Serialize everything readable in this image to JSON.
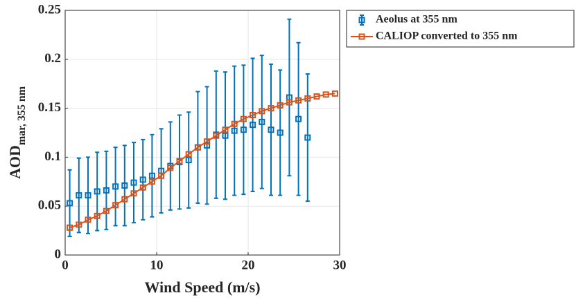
{
  "chart_data": {
    "type": "errorbar",
    "xlabel": "Wind Speed (m/s)",
    "ylabel": "AOD",
    "ylabel_sub": "mar, 355 nm",
    "xlim": [
      0,
      30
    ],
    "xticks": [
      0,
      10,
      20,
      30
    ],
    "ylim": [
      0,
      0.25
    ],
    "yticks": [
      0,
      0.05,
      0.1,
      0.15,
      0.2,
      0.25
    ],
    "grid": true,
    "legend_position": "outside-right",
    "series": [
      {
        "name": "Aeolus at 355 nm",
        "color": "#0072bd",
        "connected": false,
        "x": [
          0.5,
          1.5,
          2.5,
          3.5,
          4.5,
          5.5,
          6.5,
          7.5,
          8.5,
          9.5,
          10.5,
          11.5,
          12.5,
          13.5,
          14.5,
          15.5,
          16.5,
          17.5,
          18.5,
          19.5,
          20.5,
          21.5,
          22.5,
          23.5,
          24.5,
          25.5,
          26.5
        ],
        "values": [
          0.053,
          0.061,
          0.061,
          0.065,
          0.066,
          0.07,
          0.071,
          0.074,
          0.077,
          0.081,
          0.086,
          0.091,
          0.095,
          0.097,
          0.11,
          0.112,
          0.123,
          0.122,
          0.127,
          0.128,
          0.133,
          0.136,
          0.128,
          0.125,
          0.161,
          0.139,
          0.12
        ],
        "errors": [
          0.034,
          0.038,
          0.039,
          0.04,
          0.04,
          0.04,
          0.041,
          0.041,
          0.041,
          0.042,
          0.043,
          0.045,
          0.048,
          0.049,
          0.057,
          0.06,
          0.065,
          0.065,
          0.066,
          0.066,
          0.068,
          0.068,
          0.067,
          0.064,
          0.08,
          0.078,
          0.065
        ]
      },
      {
        "name": "CALIOP converted to 355 nm",
        "color": "#d95319",
        "connected": true,
        "x": [
          0.5,
          1.5,
          2.5,
          3.5,
          4.5,
          5.5,
          6.5,
          7.5,
          8.5,
          9.5,
          10.5,
          11.5,
          12.5,
          13.5,
          14.5,
          15.5,
          16.5,
          17.5,
          18.5,
          19.5,
          20.5,
          21.5,
          22.5,
          23.5,
          24.5,
          25.5,
          26.5,
          27.5,
          28.5,
          29.5
        ],
        "values": [
          0.028,
          0.031,
          0.036,
          0.04,
          0.045,
          0.051,
          0.057,
          0.063,
          0.069,
          0.075,
          0.081,
          0.089,
          0.096,
          0.103,
          0.11,
          0.116,
          0.122,
          0.128,
          0.134,
          0.139,
          0.143,
          0.147,
          0.15,
          0.153,
          0.156,
          0.158,
          0.16,
          0.162,
          0.164,
          0.165
        ]
      }
    ]
  }
}
